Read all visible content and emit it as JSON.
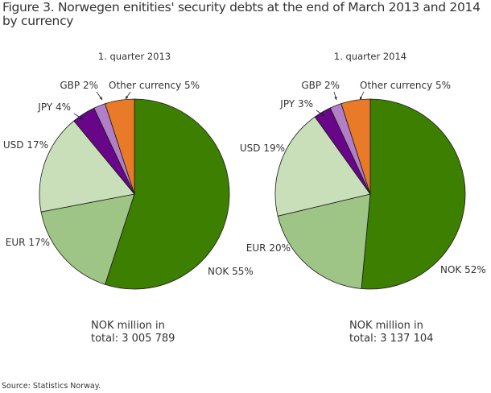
{
  "title": "Figure 3. Norwegen enitities' security debts at the end of  March 2013 and 2014 by currency",
  "source": "Source: Statistics Norway.",
  "chart_data": [
    {
      "type": "pie",
      "title": "1. quarter 2013",
      "total_label_line1": "NOK million in",
      "total_label_line2": "total: 3 005 789",
      "slices": [
        {
          "name": "NOK",
          "value": 55,
          "label": "NOK 55%",
          "color": "#3d7f00"
        },
        {
          "name": "EUR",
          "value": 17,
          "label": "EUR 17%",
          "color": "#9ec486"
        },
        {
          "name": "USD",
          "value": 17,
          "label": "USD 17%",
          "color": "#c8dfba"
        },
        {
          "name": "JPY",
          "value": 4,
          "label": "JPY 4%",
          "color": "#680589"
        },
        {
          "name": "GBP",
          "value": 2,
          "label": "GBP 2%",
          "color": "#b07fc7"
        },
        {
          "name": "Other currency",
          "value": 5,
          "label": "Other currency 5%",
          "color": "#e87a28"
        }
      ]
    },
    {
      "type": "pie",
      "title": "1. quarter 2014",
      "total_label_line1": "NOK million in",
      "total_label_line2": "total: 3 137 104",
      "slices": [
        {
          "name": "NOK",
          "value": 52,
          "label": "NOK 52%",
          "color": "#3d7f00"
        },
        {
          "name": "EUR",
          "value": 20,
          "label": "EUR 20%",
          "color": "#9ec486"
        },
        {
          "name": "USD",
          "value": 19,
          "label": "USD 19%",
          "color": "#c8dfba"
        },
        {
          "name": "JPY",
          "value": 3,
          "label": "JPY 3%",
          "color": "#680589"
        },
        {
          "name": "GBP",
          "value": 2,
          "label": "GBP 2%",
          "color": "#b07fc7"
        },
        {
          "name": "Other currency",
          "value": 5,
          "label": "Other currency 5%",
          "color": "#e87a28"
        }
      ]
    }
  ]
}
